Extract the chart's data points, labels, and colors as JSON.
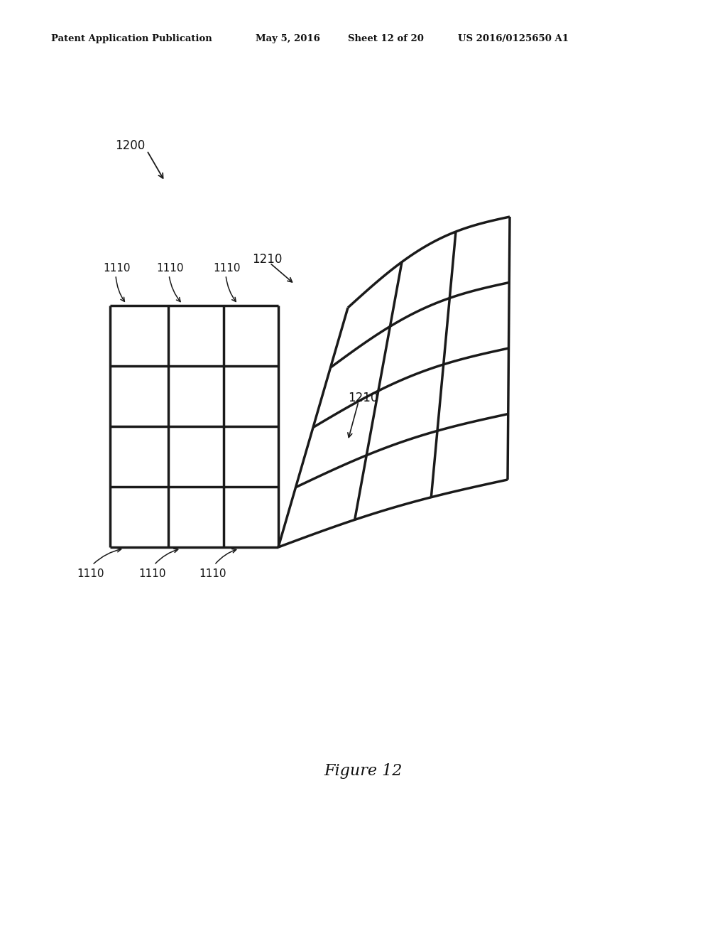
{
  "title_header": "Patent Application Publication",
  "header_date": "May 5, 2016",
  "header_sheet": "Sheet 12 of 20",
  "header_patent": "US 2016/0125650 A1",
  "figure_label": "Figure 12",
  "label_1200": "1200",
  "label_1210_top": "1210",
  "label_1210_bottom": "1210",
  "labels_1110_top": [
    "1110",
    "1110",
    "1110"
  ],
  "labels_1110_bottom": [
    "1110",
    "1110",
    "1110"
  ],
  "bg_color": "#ffffff",
  "line_color": "#1a1a1a",
  "lw": 2.5
}
